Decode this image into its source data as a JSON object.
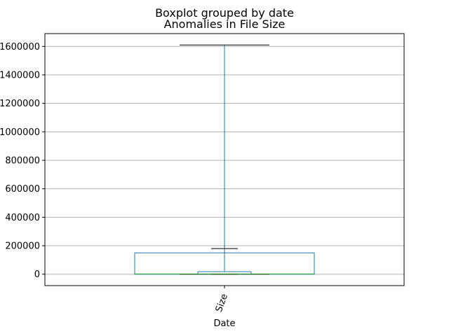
{
  "chart_data": {
    "type": "box",
    "title": "Boxplot grouped by date",
    "subtitle": "Anomalies in File Size",
    "xlabel": "Date",
    "ylabel": "",
    "categories": [
      "Size"
    ],
    "ylim": [
      -80000,
      1690000
    ],
    "yticks": [
      0,
      200000,
      400000,
      600000,
      800000,
      1000000,
      1200000,
      1400000,
      1600000
    ],
    "ytick_labels": [
      "0",
      "200000",
      "400000",
      "600000",
      "800000",
      "1000000",
      "1200000",
      "1400000",
      "1600000"
    ],
    "grid": true,
    "boxes": [
      {
        "group": "outer",
        "category": "Size",
        "whisker_low": 0,
        "q1": 0,
        "median": 2000,
        "q3": 150000,
        "whisker_high": 1610000,
        "box_color": "#1f77b4",
        "median_color": "#2ca02c"
      },
      {
        "group": "inner",
        "category": "Size",
        "whisker_low": 0,
        "q1": 1000,
        "median": 2000,
        "q3": 18000,
        "whisker_high": 180000,
        "box_color": "#1f77b4",
        "median_color": "#2ca02c"
      }
    ]
  }
}
